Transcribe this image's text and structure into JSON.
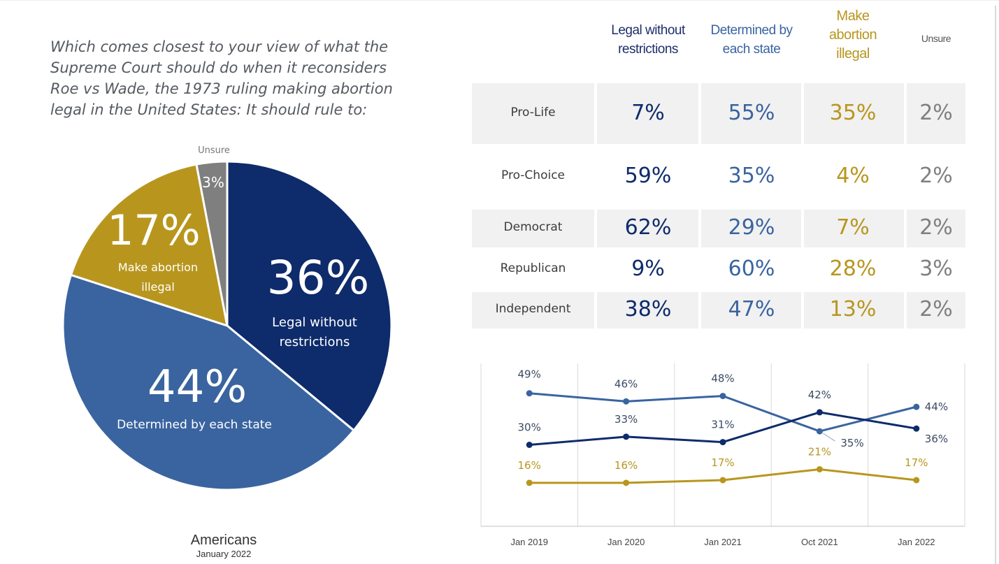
{
  "question": "Which comes closest to your view of what the\nSupreme Court should do when it reconsiders\nRoe vs Wade, the 1973 ruling making abortion\nlegal in the United States: It should rule to:",
  "colors": {
    "legal": "#0e2b6b",
    "state": "#3a64a0",
    "illegal": "#b8961e",
    "unsure": "#7f7f7f"
  },
  "chart_data": [
    {
      "type": "pie",
      "slices": [
        {
          "label": "Legal without restrictions",
          "value": 36,
          "value_label": "36%"
        },
        {
          "label": "Determined by each state",
          "value": 44,
          "value_label": "44%"
        },
        {
          "label": "Make abortion illegal",
          "value": 17,
          "value_label": "17%"
        },
        {
          "label": "Unsure",
          "value": 3,
          "value_label": "3%"
        }
      ],
      "caption": "Americans",
      "subcaption": "January 2022"
    },
    {
      "type": "table",
      "columns": [
        "Legal without restrictions",
        "Determined by each state",
        "Make abortion illegal",
        "Unsure"
      ],
      "column_headers_display": [
        "Legal without\nrestrictions",
        "Determined by\neach state",
        "Make\nabortion\nillegal",
        "Unsure"
      ],
      "rows": [
        {
          "label": "Pro-Life",
          "values": [
            "7%",
            "55%",
            "35%",
            "2%"
          ]
        },
        {
          "label": "Pro-Choice",
          "values": [
            "59%",
            "35%",
            "4%",
            "2%"
          ]
        },
        {
          "label": "Democrat",
          "values": [
            "62%",
            "29%",
            "7%",
            "2%"
          ]
        },
        {
          "label": "Republican",
          "values": [
            "9%",
            "60%",
            "28%",
            "3%"
          ]
        },
        {
          "label": "Independent",
          "values": [
            "38%",
            "47%",
            "13%",
            "2%"
          ]
        }
      ]
    },
    {
      "type": "line",
      "x": [
        "Jan 2019",
        "Jan 2020",
        "Jan 2021",
        "Oct 2021",
        "Jan 2022"
      ],
      "ylim": [
        0,
        60
      ],
      "grid": "vertical",
      "series": [
        {
          "key": "state",
          "values": [
            49,
            46,
            48,
            35,
            44
          ],
          "labels": [
            "49%",
            "46%",
            "48%",
            "35%",
            "44%"
          ]
        },
        {
          "key": "legal",
          "values": [
            30,
            33,
            31,
            42,
            36
          ],
          "labels": [
            "30%",
            "33%",
            "31%",
            "42%",
            "36%"
          ]
        },
        {
          "key": "illegal",
          "values": [
            16,
            16,
            17,
            21,
            17
          ],
          "labels": [
            "16%",
            "16%",
            "17%",
            "21%",
            "17%"
          ]
        }
      ]
    }
  ]
}
